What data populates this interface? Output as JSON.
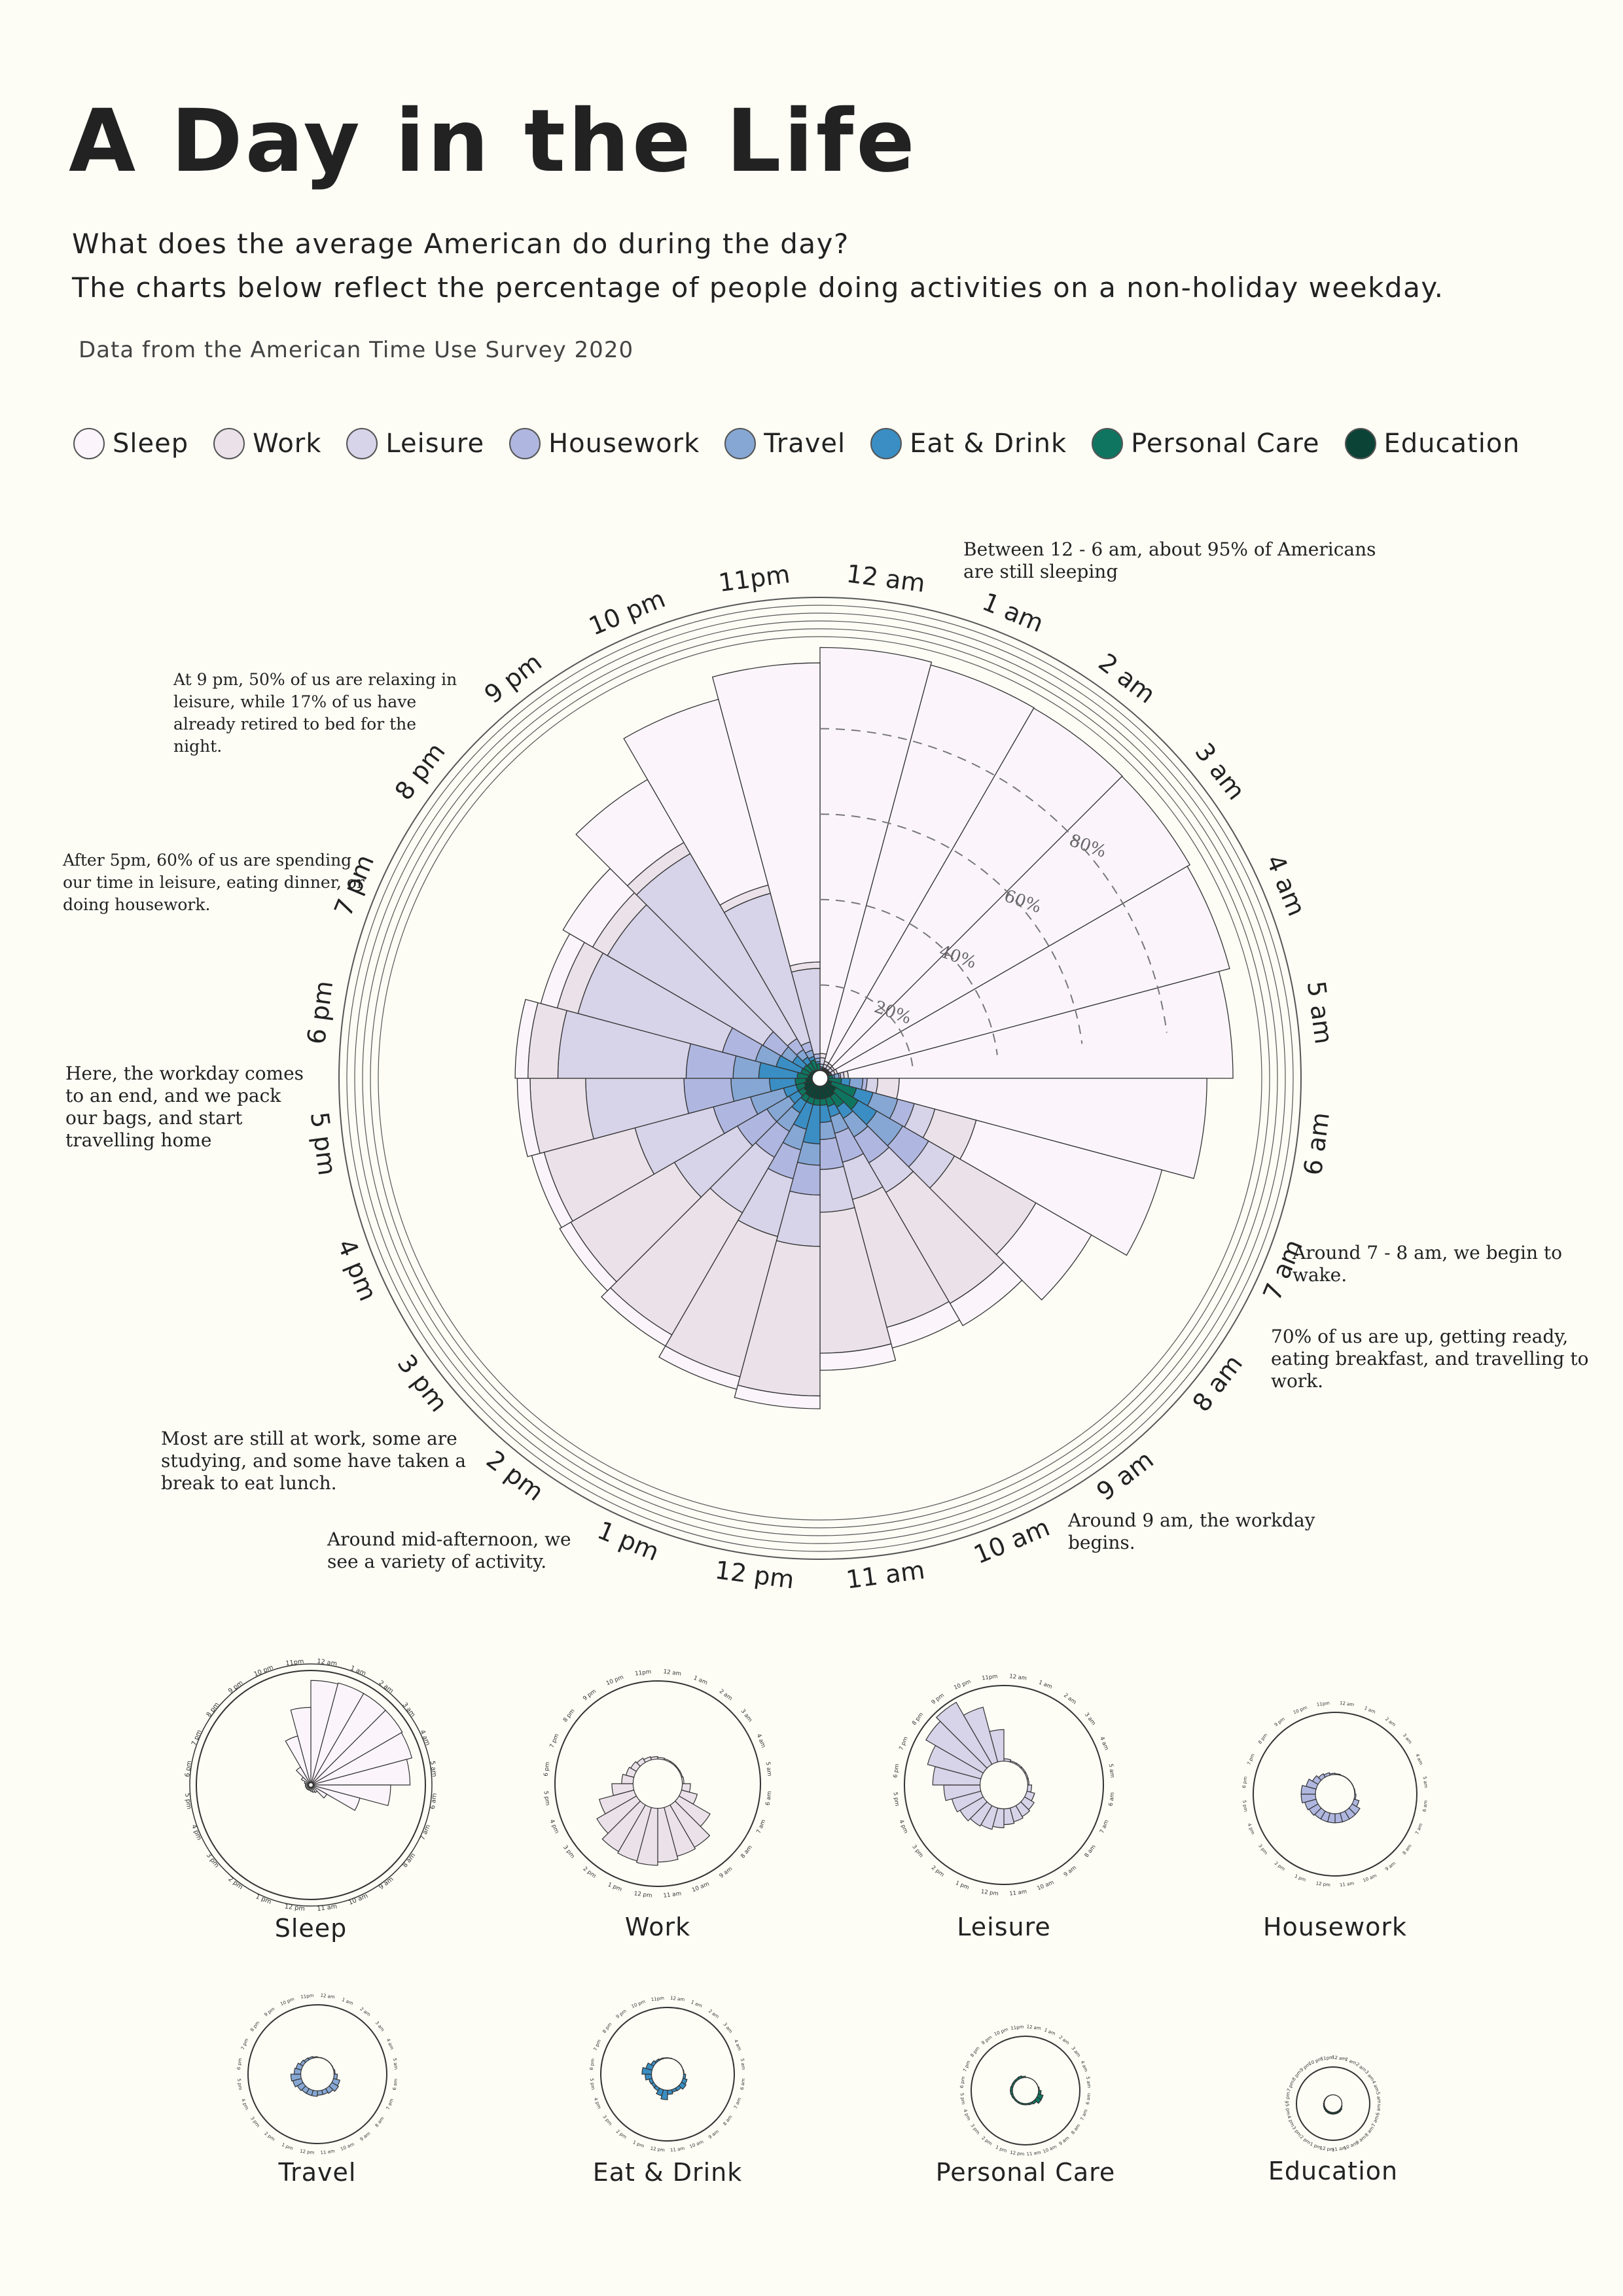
{
  "header": {
    "title": "A Day in the Life",
    "subtitle_line1": "What does the average American do during the day?",
    "subtitle_line2": "The charts below reflect the percentage of people doing activities on a non-holiday weekday.",
    "source": "Data from the American Time Use Survey 2020"
  },
  "legend": [
    {
      "label": "Sleep",
      "color": "#fbf5fb"
    },
    {
      "label": "Work",
      "color": "#ebe2e9"
    },
    {
      "label": "Leisure",
      "color": "#d7d3e8"
    },
    {
      "label": "Housework",
      "color": "#afb7e0"
    },
    {
      "label": "Travel",
      "color": "#86a7d4"
    },
    {
      "label": "Eat & Drink",
      "color": "#3a8ec3"
    },
    {
      "label": "Personal Care",
      "color": "#0f7560"
    },
    {
      "label": "Education",
      "color": "#0b4336"
    }
  ],
  "annotations": {
    "sleeping": "Between 12 - 6 am, about 95% of Americans\nare still sleeping",
    "nine_pm": "At 9 pm, 50% of us are relaxing in\nleisure, while 17% of us have\nalready retired to bed for the\nnight.",
    "five_pm": "After 5pm, 60% of us are spending\nour time in leisure, eating dinner, or\ndoing housework.",
    "workday_end": "Here, the workday comes\nto an end, and we pack\nour bags, and start\ntravelling home",
    "wake": "Around 7 - 8 am, we begin to\nwake.",
    "getting_ready": "70% of us are up, getting ready,\neating breakfast, and travelling to\nwork.",
    "at_work": "Most are still at work, some are\nstudying, and some have taken a\nbreak to eat lunch.",
    "afternoon": "Around mid-afternoon, we\nsee a variety of activity.",
    "workday_begins": "Around 9 am, the workday\nbegins."
  },
  "chart_data": {
    "type": "radial-stacked-bar",
    "title": "A Day in the Life",
    "hours": [
      "12 am",
      "1 am",
      "2 am",
      "3 am",
      "4 am",
      "5 am",
      "6 am",
      "7 am",
      "8 am",
      "9 am",
      "10 am",
      "11 am",
      "12 pm",
      "1 pm",
      "2 pm",
      "3 pm",
      "4 pm",
      "5 pm",
      "6 pm",
      "7 pm",
      "8 pm",
      "9 pm",
      "10 pm",
      "11pm"
    ],
    "radial_ticks": [
      "20%",
      "40%",
      "60%",
      "80%"
    ],
    "ylim": [
      0,
      100
    ],
    "series": [
      {
        "name": "Education",
        "values": [
          0.1,
          0.1,
          0.1,
          0.1,
          0.1,
          0.1,
          0.2,
          1,
          2.5,
          3,
          3,
          3,
          3,
          3,
          3,
          2.5,
          2,
          1.5,
          1,
          0.8,
          0.6,
          0.4,
          0.2,
          0.1
        ]
      },
      {
        "name": "Personal Care",
        "values": [
          0.2,
          0.1,
          0.1,
          0.1,
          0.2,
          1,
          3,
          6,
          6,
          3,
          2,
          1.5,
          1.5,
          1.5,
          1.5,
          1.5,
          2,
          2.5,
          2.5,
          2,
          2,
          2,
          2.5,
          1.5
        ]
      },
      {
        "name": "Eat & Drink",
        "values": [
          0.3,
          0.2,
          0.2,
          0.2,
          0.2,
          0.5,
          2,
          4,
          5,
          3,
          2.5,
          4,
          9,
          6,
          3,
          2.5,
          3,
          6,
          9,
          6,
          3,
          1.5,
          0.8,
          0.5
        ]
      },
      {
        "name": "Travel",
        "values": [
          0.3,
          0.2,
          0.2,
          0.2,
          0.3,
          1,
          3,
          6,
          7,
          5,
          4,
          4,
          5,
          5,
          5,
          6,
          8,
          9,
          6,
          5,
          3,
          2,
          1.5,
          0.8
        ]
      },
      {
        "name": "Housework",
        "values": [
          0.6,
          0.2,
          0.2,
          0.2,
          0.2,
          0.4,
          1,
          4,
          7,
          7,
          7,
          7,
          7,
          7,
          7,
          8,
          9,
          11,
          11,
          8,
          5,
          3,
          2,
          1
        ]
      },
      {
        "name": "Leisure",
        "values": [
          1.5,
          0.8,
          0.8,
          0.8,
          0.8,
          0.8,
          2.5,
          5,
          7,
          8,
          9,
          10,
          12,
          14,
          15,
          17,
          19,
          23,
          30,
          35,
          42,
          50,
          36,
          20
        ]
      },
      {
        "name": "Work",
        "values": [
          1,
          0.7,
          0.6,
          0.5,
          0.6,
          1,
          5,
          10,
          22,
          30,
          31,
          33,
          35,
          34,
          33,
          28,
          22,
          13,
          7,
          5,
          4,
          3,
          2,
          1.5
        ]
      },
      {
        "name": "Sleep",
        "values": [
          95,
          96,
          96,
          96,
          95,
          90,
          72,
          45,
          15,
          6,
          5,
          4,
          3,
          3,
          3,
          3,
          3,
          3,
          3,
          4,
          8,
          17,
          45,
          70
        ]
      }
    ],
    "small_multiples": [
      "Sleep",
      "Work",
      "Leisure",
      "Housework",
      "Travel",
      "Eat & Drink",
      "Personal Care",
      "Education"
    ]
  }
}
